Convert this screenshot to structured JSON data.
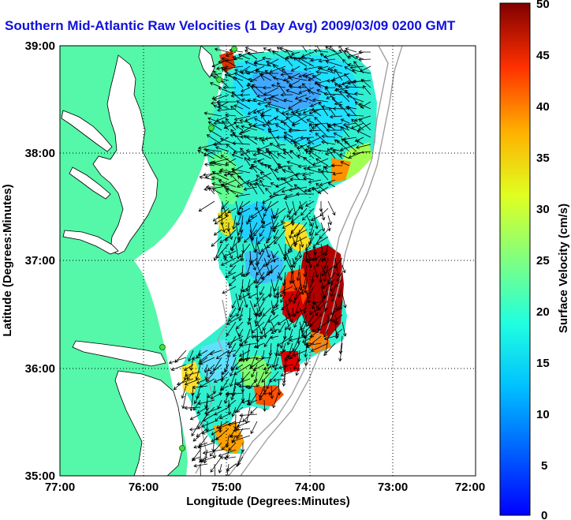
{
  "title": "Southern Mid-Atlantic Raw Velocities (1 Day Avg) 2009/03/09 0200 GMT",
  "axes": {
    "xlabel": "Longitude (Degrees:Minutes)",
    "ylabel": "Latitude (Degrees:Minutes)",
    "xticks": [
      "77:00",
      "76:00",
      "75:00",
      "74:00",
      "73:00",
      "72:00"
    ],
    "yticks": [
      "39:00",
      "38:00",
      "37:00",
      "36:00",
      "35:00"
    ]
  },
  "colorbar": {
    "label": "Surface Velocity (cm/s)",
    "ticks": [
      "50",
      "45",
      "40",
      "35",
      "30",
      "25",
      "20",
      "15",
      "10",
      "5",
      "0"
    ],
    "min": 0,
    "max": 50
  },
  "colors": {
    "land": "#55f7a9",
    "water": "#ffffff",
    "title": "#1111dd"
  }
}
